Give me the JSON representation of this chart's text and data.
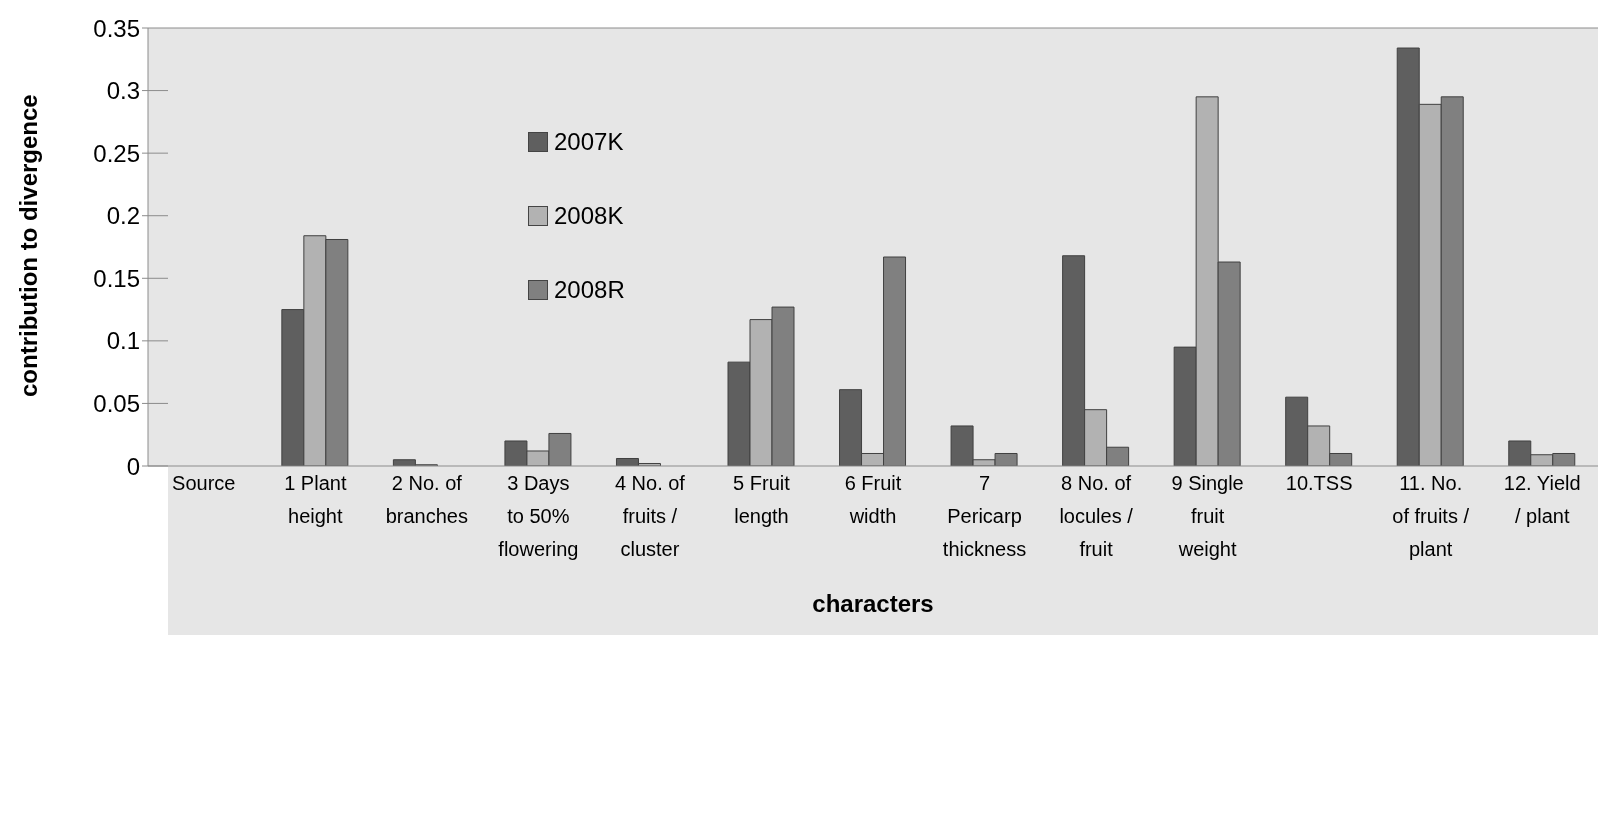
{
  "chart_data": {
    "type": "bar",
    "xlabel": "characters",
    "ylabel": "contribution to divergence",
    "categories": [
      "Source",
      "1  Plant\nheight",
      "2  No. of\nbranches",
      "3  Days\nto 50%\nflowering",
      "4  No. of\nfruits /\ncluster",
      "5  Fruit\nlength",
      "6  Fruit\nwidth",
      "7\nPericarp\nthickness",
      "8  No. of\nlocules /\nfruit",
      "9  Single\nfruit\nweight",
      "10.TSS",
      "11. No.\nof fruits /\nplant",
      "12. Yield\n/ plant"
    ],
    "series": [
      {
        "name": "2007K",
        "color": "#5f5f5f",
        "values": [
          null,
          0.125,
          0.005,
          0.02,
          0.006,
          0.083,
          0.061,
          0.032,
          0.168,
          0.095,
          0.055,
          0.334,
          0.02
        ]
      },
      {
        "name": "2008K",
        "color": "#b2b2b2",
        "values": [
          null,
          0.184,
          0.001,
          0.012,
          0.002,
          0.117,
          0.01,
          0.005,
          0.045,
          0.295,
          0.032,
          0.289,
          0.009
        ]
      },
      {
        "name": "2008R",
        "color": "#808080",
        "values": [
          null,
          0.181,
          0,
          0.026,
          0,
          0.127,
          0.167,
          0.01,
          0.015,
          0.163,
          0.01,
          0.295,
          0.01
        ]
      }
    ],
    "ylim": [
      0,
      0.35
    ],
    "yticks": [
      0,
      0.05,
      0.1,
      0.15,
      0.2,
      0.25,
      0.3,
      0.35
    ],
    "grid": "y",
    "legend": "top left"
  }
}
